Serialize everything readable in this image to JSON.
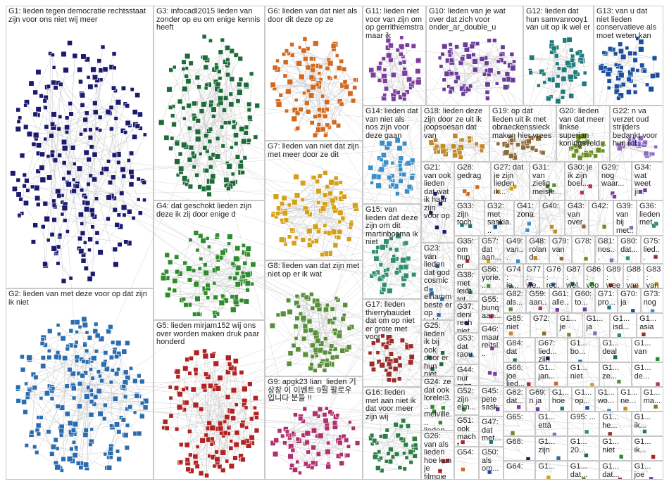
{
  "groups": [
    "G1: lieden tegen democratie rechtsstaat zijn voor ons niet wij meer",
    "G2: lieden van met deze voor op dat zijn ik niet",
    "G3: infocadl2015 lieden van zonder op eu om enige kennis heeft",
    "G4: dat geschokt lieden zijn deze ik zij door enige d",
    "G5: lieden mirjam152 wij ons over worden maken druk paar honderd",
    "G6: lieden van dat niet als door dit deze op ze",
    "G7: lieden van niet dat zijn met meer door ze dit",
    "G8: lieden van dat zijn met niet op er ik wat",
    "G9: apgk23 lian_lieden 기상창 이 이벤트 9월 팔로우 입니다 분들 !!",
    "G11: lieden niet voor van zijn om op gerrithiemstra maar ik",
    "G10: lieden van je wat over dat zich voor onder_ar_double_u",
    "G12: lieden dat hun samvanrooy1 van uit op ik wel er",
    "G13: van u dat niet lieden conservatieve als moet weten kan",
    "G14: lieden dat van niet als nos zijn voor deze gaan",
    "G18: lieden deze zijn door ze uit ik joopsoesan dat van",
    "G19: op dat lieden uit ik met obraeckenssieck maken hier vrees",
    "G20: lieden van dat meer linkse superjan koningsveld...",
    "G22: n va verzet oud strijders bedankt voor hun rol...",
    "G15: van lieden dat deze zijn om dit martinbosma ik niet",
    "G17: lieden thierrybaudet dat om op niet er grote met voor",
    "G16: lieden met aan niet ik dat voor meer zijn wij",
    "G21: van ook lieden dat wat ik haar zijn voor op",
    "G23: van lieden dat god cosmicd elhamm beste er op hebben",
    "G25: lieden ik bij ook door er hun niet...",
    "G24: ze dat ook lorelei3... melville... lieden...",
    "G26: van als lieden hoe kun je filmpje",
    "G28: gedrag",
    "G27: dat je zijn lieden ik...",
    "G31: van zielig meisje...",
    "G30: je ik zijn boel...",
    "G29: nog waar...",
    "G34: wat weet ji...",
    "G33: zijn toch",
    "G32: met saskia...",
    "G41: zona",
    "G40:",
    "G43: van over",
    "G42:",
    "G39: van bij met...",
    "G36: lieden met...",
    "G35: om hun er aan...",
    "G38: met leidt tot...",
    "G37: deni rech niet...",
    "G53: dat raou...",
    "G44: nur moo...",
    "G52: zijn elm...",
    "G51: ook macht...",
    "G54:",
    "G57: dat aan...",
    "G56: yorie...",
    "G55: bunq aan...",
    "G46: maar reitsl...",
    "G45: pete sask...",
    "G47: dat met...",
    "G50: als om...",
    "G49: van...",
    "G48: roland...",
    "G79: van",
    "G78:",
    "G81: nos...",
    "G80: dat...",
    "G75: lied...",
    "G74: je...",
    "G77: we...",
    "G76: rec...",
    "G87: wel...",
    "G86: voor",
    "G89: wee...",
    "G88: van",
    "G83: van",
    "G82: als...",
    "G59: aan...",
    "G61: alle...",
    "G60: to...",
    "G71: pro...",
    "G70: ja",
    "G73: nog",
    "G85: niet",
    "G72:",
    "G1... je",
    "G1... ja",
    "G1... isd...",
    "G1... asia",
    "G84: dat",
    "G67: lied... zijn",
    "G1... bo...",
    "G1... deal",
    "G1... van",
    "G66: joe lied...",
    "G1... jan...",
    "G1... niet",
    "G1... ze...",
    "G1... de...",
    "G62: dat...",
    "G69: n ja",
    "G1... hoe",
    "G1... op...",
    "G1... wo...",
    "G1... ne...",
    "G1... ma...",
    "G65:",
    "G1... että",
    "G95: ...",
    "G1... he...",
    "G1... ik...",
    "G68:",
    "G1... zijn",
    "G1... 20...",
    "G1... niet",
    "G1... ik...",
    "G64:",
    "G1...",
    "G1... dat...",
    "G1... dat...",
    "G1... joe"
  ]
}
